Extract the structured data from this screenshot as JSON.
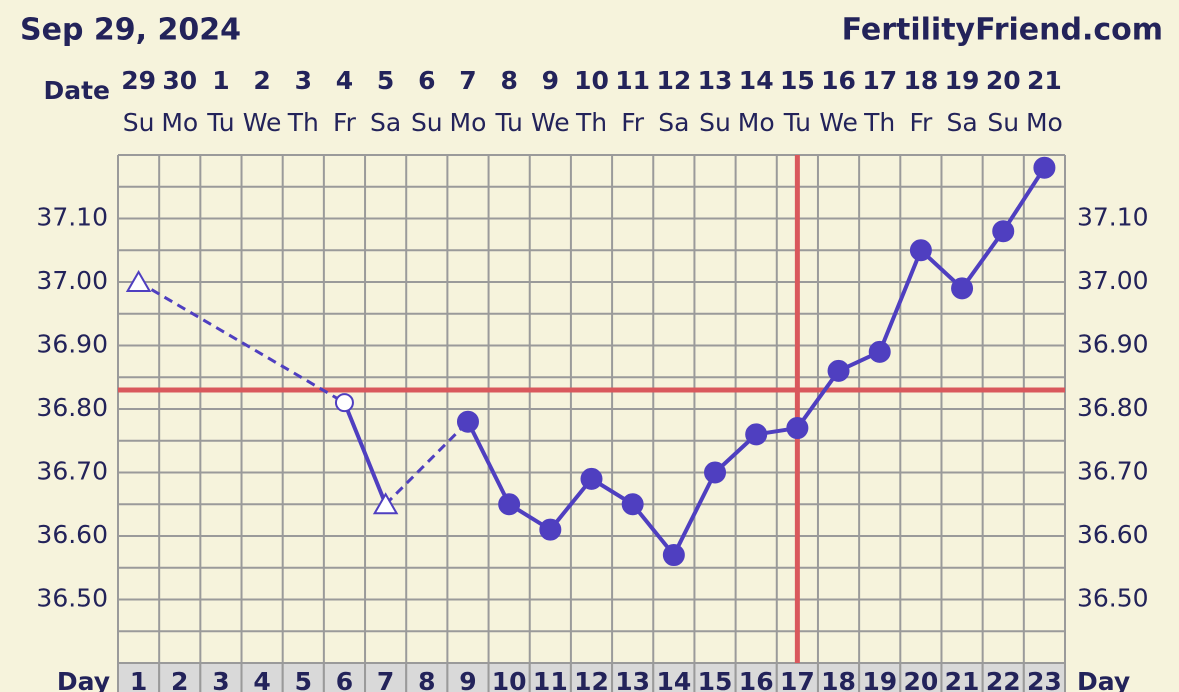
{
  "chart_data": {
    "type": "bbt",
    "title": "Sep 29, 2024",
    "site": "FertilityFriend.com",
    "date_label": "Date",
    "day_label": "Day",
    "dates": [
      "29",
      "30",
      "1",
      "2",
      "3",
      "4",
      "5",
      "6",
      "7",
      "8",
      "9",
      "10",
      "11",
      "12",
      "13",
      "14",
      "15",
      "16",
      "17",
      "18",
      "19",
      "20",
      "21"
    ],
    "weekdays": [
      "Su",
      "Mo",
      "Tu",
      "We",
      "Th",
      "Fr",
      "Sa",
      "Su",
      "Mo",
      "Tu",
      "We",
      "Th",
      "Fr",
      "Sa",
      "Su",
      "Mo",
      "Tu",
      "We",
      "Th",
      "Fr",
      "Sa",
      "Su",
      "Mo"
    ],
    "x": [
      1,
      2,
      3,
      4,
      5,
      6,
      7,
      8,
      9,
      10,
      11,
      12,
      13,
      14,
      15,
      16,
      17,
      18,
      19,
      20,
      21,
      22,
      23
    ],
    "xlim": [
      0.5,
      23.5
    ],
    "values": [
      37.0,
      null,
      null,
      null,
      null,
      36.81,
      36.65,
      null,
      36.78,
      36.65,
      36.61,
      36.69,
      36.65,
      36.57,
      36.7,
      36.76,
      36.77,
      36.86,
      36.89,
      37.05,
      36.99,
      37.08,
      37.18
    ],
    "markers": [
      "triangle",
      null,
      null,
      null,
      null,
      "open-circle",
      "triangle",
      null,
      "circle",
      "circle",
      "circle",
      "circle",
      "circle",
      "circle",
      "circle",
      "circle",
      "circle",
      "circle",
      "circle",
      "circle",
      "circle",
      "circle",
      "circle"
    ],
    "color": "#4f3fc0",
    "ylim": [
      36.4,
      37.2
    ],
    "yticks": [
      {
        "value": 36.5,
        "label": "36.50"
      },
      {
        "value": 36.6,
        "label": "36.60"
      },
      {
        "value": 36.7,
        "label": "36.70"
      },
      {
        "value": 36.8,
        "label": "36.80"
      },
      {
        "value": 36.9,
        "label": "36.90"
      },
      {
        "value": 37.0,
        "label": "37.00"
      },
      {
        "value": 37.1,
        "label": "37.10"
      }
    ],
    "coverline": 36.83,
    "ovulation_day": 17,
    "marker_line_color": "#d9585c"
  }
}
